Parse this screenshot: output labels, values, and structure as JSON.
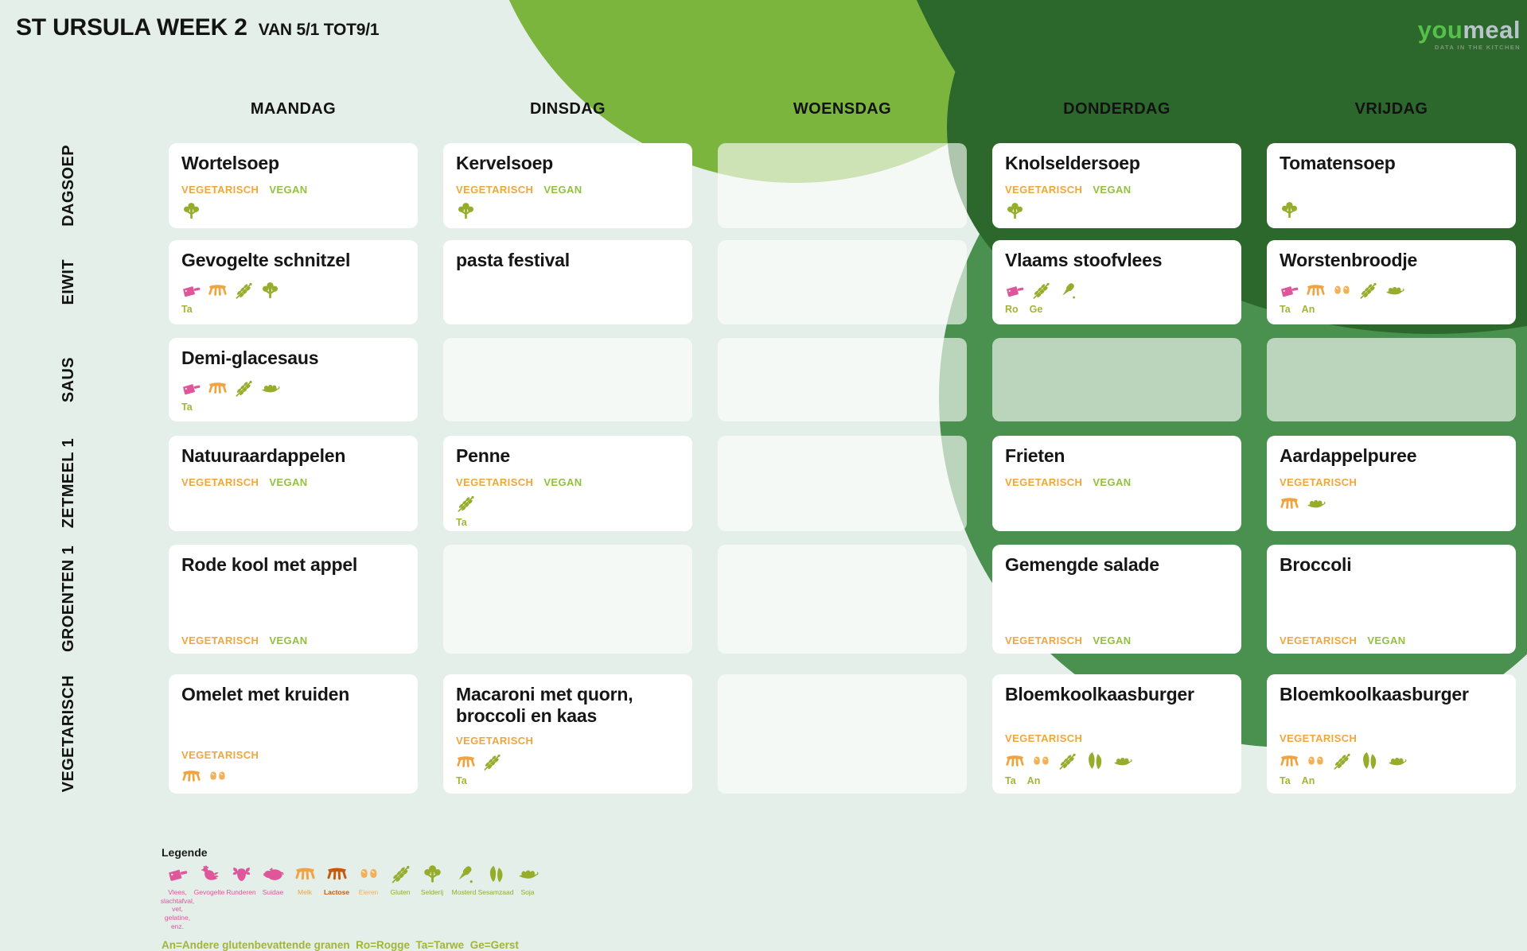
{
  "header": {
    "title": "ST URSULA WEEK 2",
    "subtitle": "VAN 5/1 TOT9/1"
  },
  "logo": {
    "you": "you",
    "meal": "meal",
    "tagline": "DATA IN THE KITCHEN"
  },
  "days": [
    "MAANDAG",
    "DINSDAG",
    "WOENSDAG",
    "DONDERDAG",
    "VRIJDAG"
  ],
  "rows": [
    "DAGSOEP",
    "EIWIT",
    "SAUS",
    "ZETMEEL 1",
    "GROENTEN 1",
    "VEGETARISCH"
  ],
  "cells": [
    [
      {
        "title": "Wortelsoep",
        "labels": [
          "VEGETARISCH",
          "VEGAN"
        ],
        "icons": [
          "selderij"
        ]
      },
      {
        "title": "Gevogelte schnitzel",
        "icons": [
          "vlees",
          "melk",
          "gluten",
          "selderij"
        ],
        "codes": [
          "Ta"
        ]
      },
      {
        "title": "Demi-glacesaus",
        "icons": [
          "vlees",
          "melk",
          "gluten",
          "soja"
        ],
        "codes": [
          "Ta"
        ]
      },
      {
        "title": "Natuuraardappelen",
        "labels": [
          "VEGETARISCH",
          "VEGAN"
        ]
      },
      {
        "title": "Rode kool met appel",
        "labels": [
          "VEGETARISCH",
          "VEGAN"
        ]
      },
      {
        "title": "Omelet met kruiden",
        "labels": [
          "VEGETARISCH"
        ],
        "icons": [
          "melk",
          "eieren"
        ]
      }
    ],
    [
      {
        "title": "Kervelsoep",
        "labels": [
          "VEGETARISCH",
          "VEGAN"
        ],
        "icons": [
          "selderij"
        ]
      },
      {
        "title": "pasta festival"
      },
      null,
      {
        "title": "Penne",
        "labels": [
          "VEGETARISCH",
          "VEGAN"
        ],
        "icons": [
          "gluten"
        ],
        "codes": [
          "Ta"
        ]
      },
      null,
      {
        "title": "Macaroni met quorn, broccoli en kaas",
        "labels": [
          "VEGETARISCH"
        ],
        "icons": [
          "melk",
          "gluten"
        ],
        "codes": [
          "Ta"
        ]
      }
    ],
    [
      null,
      null,
      null,
      null,
      null,
      null
    ],
    [
      {
        "title": "Knolseldersoep",
        "labels": [
          "VEGETARISCH",
          "VEGAN"
        ],
        "icons": [
          "selderij"
        ]
      },
      {
        "title": "Vlaams stoofvlees",
        "icons": [
          "vlees",
          "gluten",
          "mosterd"
        ],
        "codes": [
          "Ro",
          "Ge"
        ]
      },
      null,
      {
        "title": "Frieten",
        "labels": [
          "VEGETARISCH",
          "VEGAN"
        ]
      },
      {
        "title": "Gemengde salade",
        "labels": [
          "VEGETARISCH",
          "VEGAN"
        ]
      },
      {
        "title": "Bloemkoolkaasburger",
        "labels": [
          "VEGETARISCH"
        ],
        "icons": [
          "melk",
          "eieren",
          "gluten",
          "sesamzaad",
          "soja"
        ],
        "codes": [
          "Ta",
          "An"
        ]
      }
    ],
    [
      {
        "title": "Tomatensoep",
        "labels": [],
        "icons": [
          "selderij"
        ]
      },
      {
        "title": "Worstenbroodje",
        "icons": [
          "vlees",
          "melk",
          "eieren",
          "gluten",
          "soja"
        ],
        "codes": [
          "Ta",
          "An"
        ]
      },
      null,
      {
        "title": "Aardappelpuree",
        "labels": [
          "VEGETARISCH"
        ],
        "icons": [
          "melk",
          "soja"
        ]
      },
      {
        "title": "Broccoli",
        "labels": [
          "VEGETARISCH",
          "VEGAN"
        ]
      },
      {
        "title": "Bloemkoolkaasburger",
        "labels": [
          "VEGETARISCH"
        ],
        "icons": [
          "melk",
          "eieren",
          "gluten",
          "sesamzaad",
          "soja"
        ],
        "codes": [
          "Ta",
          "An"
        ]
      }
    ]
  ],
  "legend": {
    "title": "Legende",
    "items": [
      {
        "icon": "vlees",
        "label": "Vlees,\nslachtafval,\nvet,\ngelatine,\nenz."
      },
      {
        "icon": "gevogelte",
        "label": "Gevogelte"
      },
      {
        "icon": "runderen",
        "label": "Runderen"
      },
      {
        "icon": "suidae",
        "label": "Suidae"
      },
      {
        "icon": "melk",
        "label": "Melk"
      },
      {
        "icon": "lactose",
        "label": "Lactose"
      },
      {
        "icon": "eieren",
        "label": "Eieren"
      },
      {
        "icon": "gluten",
        "label": "Gluten"
      },
      {
        "icon": "selderij",
        "label": "Selderij"
      },
      {
        "icon": "mosterd",
        "label": "Mosterd"
      },
      {
        "icon": "sesamzaad",
        "label": "Sesamzaad"
      },
      {
        "icon": "soja",
        "label": "Soja"
      }
    ],
    "note": "An=Andere glutenbevattende granen  Ro=Rogge  Ta=Tarwe  Ge=Gerst"
  },
  "icon_colors": {
    "vlees": "pink",
    "gevogelte": "pink",
    "runderen": "pink",
    "suidae": "pink",
    "melk": "orange",
    "lactose": "rust",
    "eieren": "light_orange",
    "gluten": "olive",
    "selderij": "olive",
    "mosterd": "olive",
    "sesamzaad": "olive",
    "soja": "olive"
  },
  "palette": {
    "page_bg": "#e3efe8",
    "bright_green": "#7cb53e",
    "mid_green": "#4a9150",
    "dark_green": "#2c682c",
    "card_white": "#ffffff",
    "vegetarisch_orange": "#efa73d",
    "vegan_green": "#93c13e",
    "codes_olive": "#a3b437",
    "pink": "#e0569b",
    "orange": "#f0a441",
    "rust": "#c7590f",
    "light_orange": "#f2b159",
    "olive": "#95ad2b",
    "title_black": "#161616",
    "logo_you_green": "#57c04b",
    "logo_meal_gray": "#b9c5cb",
    "logo_tagline_gray": "#7f947f"
  }
}
